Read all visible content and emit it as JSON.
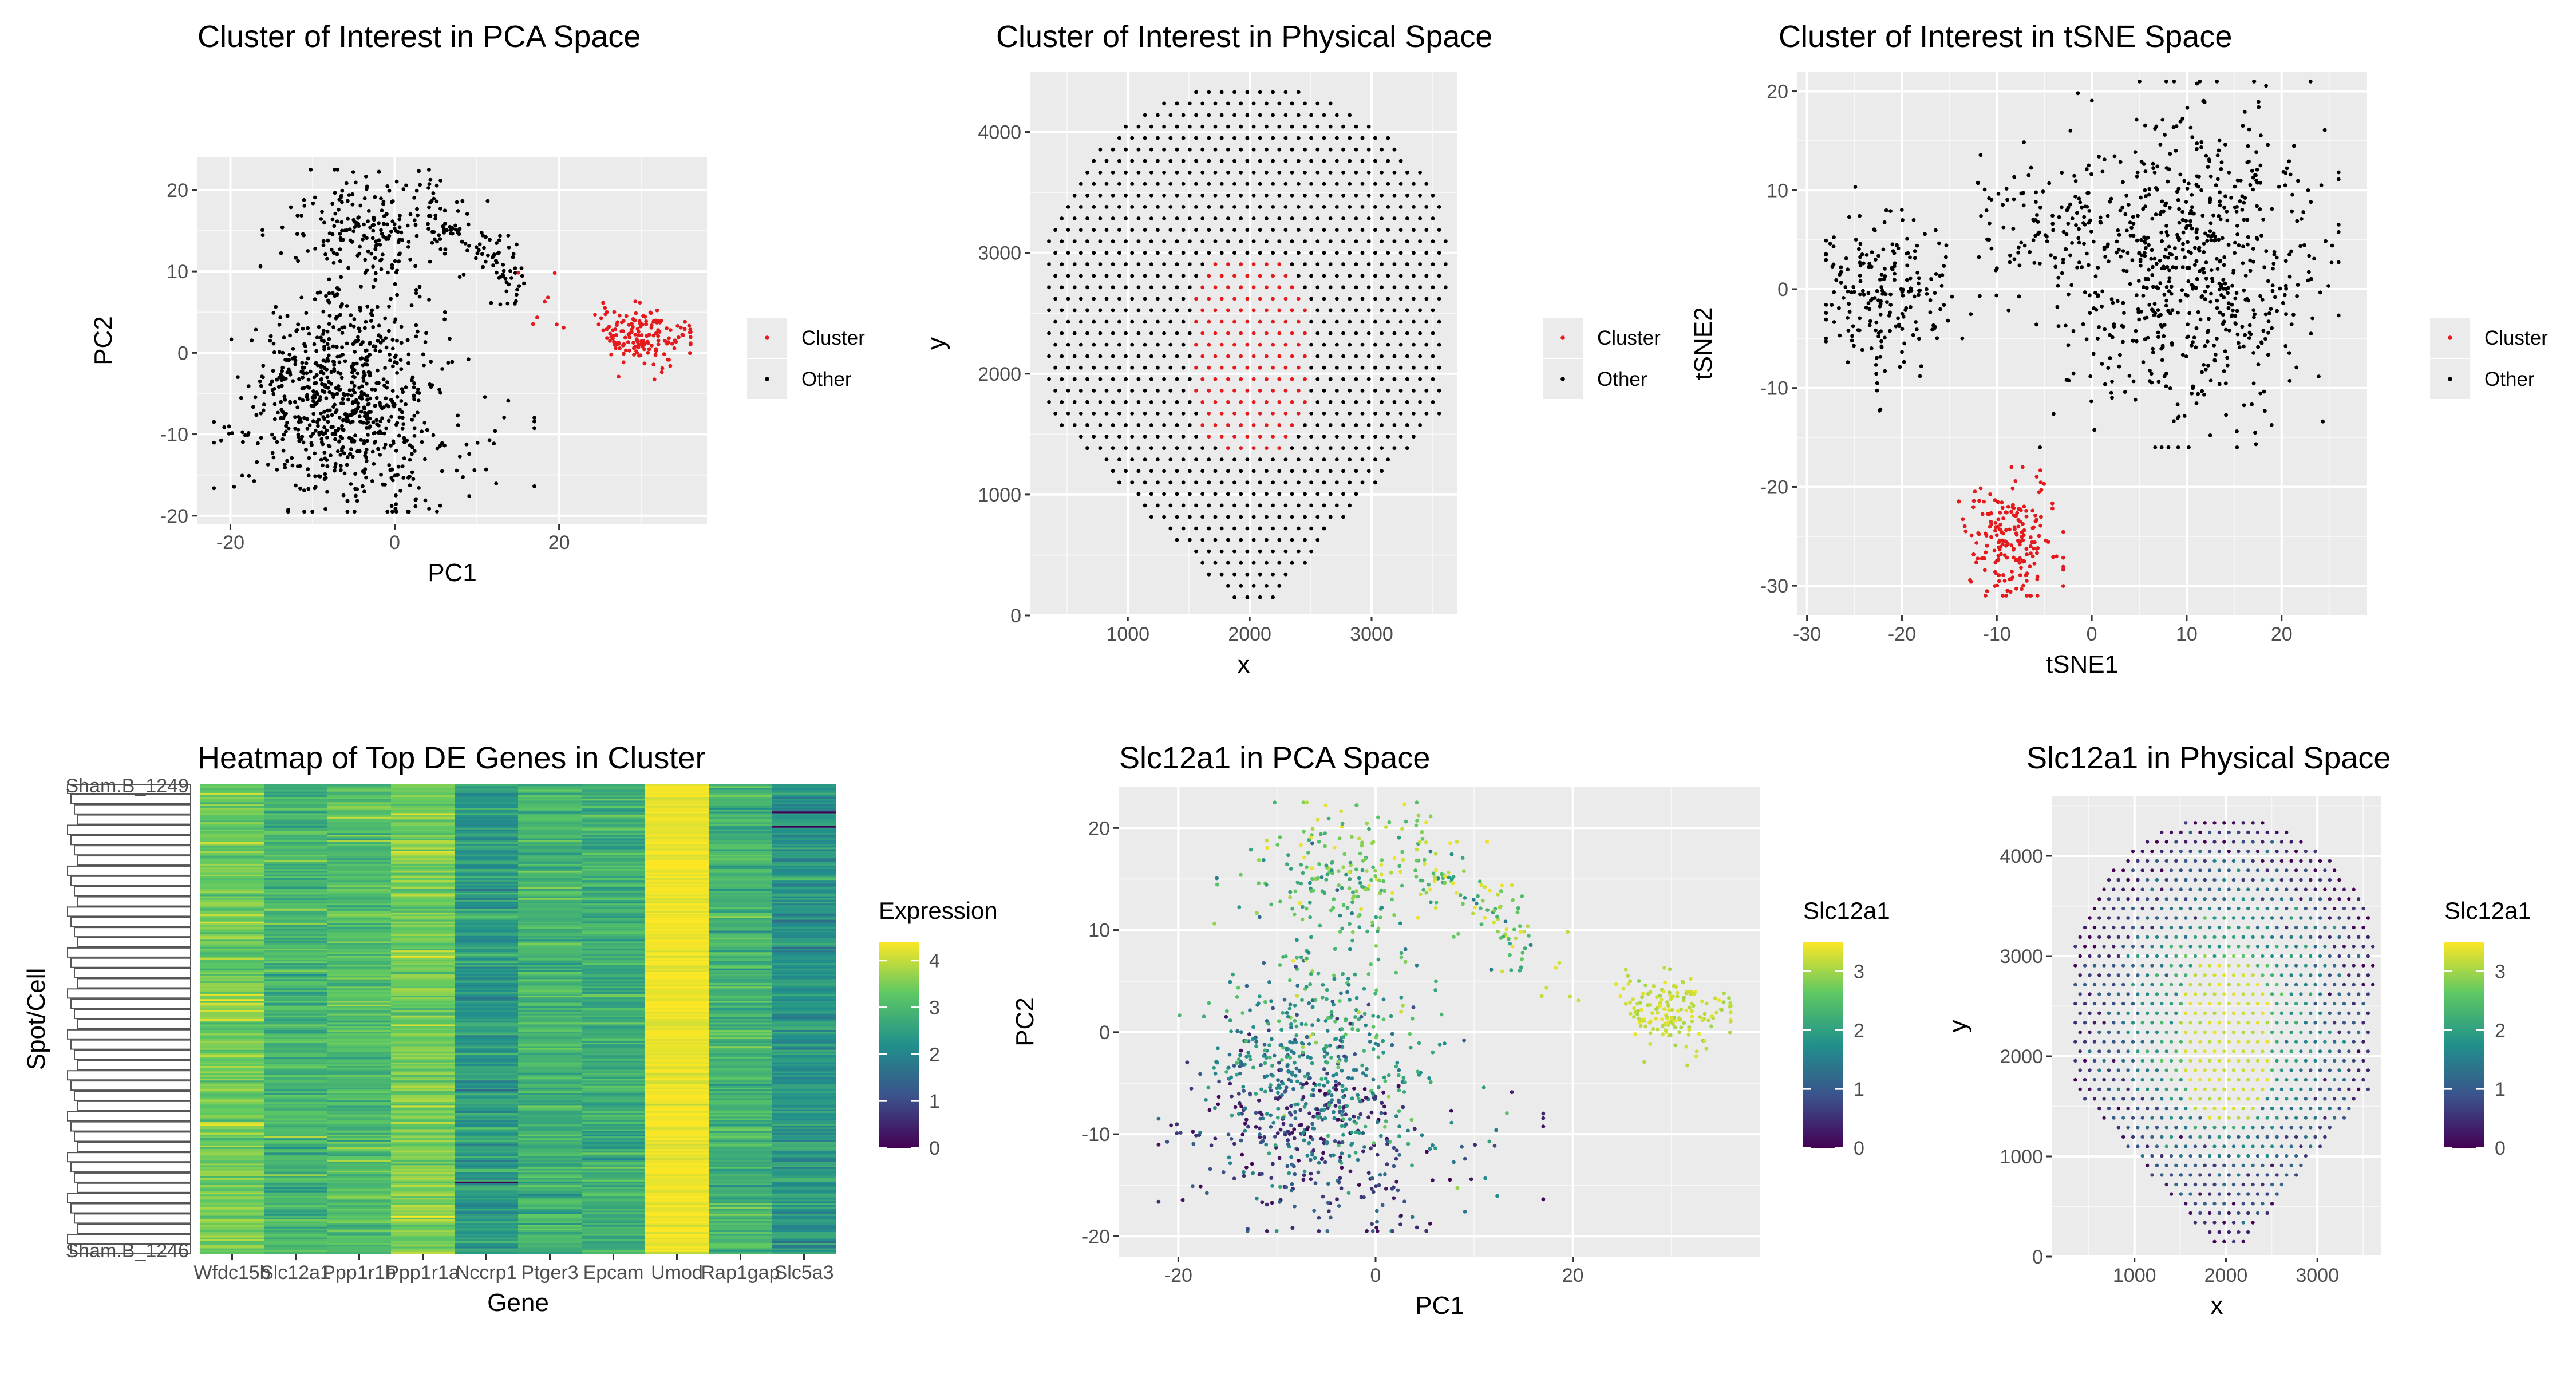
{
  "colors": {
    "panel": "#EBEBEB",
    "grid_major": "#FFFFFF",
    "cluster": "#E41A1C",
    "other": "#000000",
    "viridis": [
      "#440154",
      "#3B528B",
      "#21908C",
      "#5DC863",
      "#FDE725"
    ]
  },
  "chart_data": [
    {
      "id": "pca",
      "type": "scatter",
      "title": "Cluster of Interest in PCA Space",
      "xlabel": "PC1",
      "ylabel": "PC2",
      "xlim": [
        -24,
        38
      ],
      "ylim": [
        -21,
        24
      ],
      "xticks": [
        -20,
        0,
        20
      ],
      "yticks": [
        -20,
        -10,
        0,
        10,
        20
      ],
      "legend": {
        "position": "right",
        "entries": [
          "Cluster",
          "Other"
        ]
      },
      "series": [
        {
          "name": "Cluster",
          "n_points": 160,
          "x_range": [
            18,
            36
          ],
          "y_range": [
            -3,
            7
          ]
        },
        {
          "name": "Other",
          "n_points": 1100,
          "x_range": [
            -22,
            17
          ],
          "y_range": [
            -19,
            22
          ]
        }
      ]
    },
    {
      "id": "phys",
      "type": "scatter",
      "title": "Cluster of Interest in Physical Space",
      "xlabel": "x",
      "ylabel": "y",
      "xlim": [
        200,
        3700
      ],
      "ylim": [
        0,
        4500
      ],
      "xticks": [
        1000,
        2000,
        3000
      ],
      "yticks": [
        0,
        1000,
        2000,
        3000,
        4000
      ],
      "legend": {
        "position": "right",
        "entries": [
          "Cluster",
          "Other"
        ]
      },
      "series": [
        {
          "name": "Cluster",
          "x_range": [
            1500,
            2500
          ],
          "y_range": [
            1300,
            3000
          ]
        },
        {
          "name": "Other",
          "x_range": [
            300,
            3600
          ],
          "y_range": [
            150,
            4400
          ]
        }
      ]
    },
    {
      "id": "tsne",
      "type": "scatter",
      "title": "Cluster of Interest in tSNE Space",
      "xlabel": "tSNE1",
      "ylabel": "tSNE2",
      "xlim": [
        -31,
        29
      ],
      "ylim": [
        -33,
        22
      ],
      "xticks": [
        -30,
        -20,
        -10,
        0,
        10,
        20
      ],
      "yticks": [
        -30,
        -20,
        -10,
        0,
        10,
        20
      ],
      "legend": {
        "position": "right",
        "entries": [
          "Cluster",
          "Other"
        ]
      },
      "series": [
        {
          "name": "Cluster",
          "n_points": 200,
          "x_range": [
            -14,
            -3
          ],
          "y_range": [
            -31,
            -18
          ]
        },
        {
          "name": "Other",
          "n_points": 1100,
          "x_range": [
            -28,
            26
          ],
          "y_range": [
            -16,
            21
          ]
        }
      ]
    },
    {
      "id": "heatmap",
      "type": "heatmap",
      "title": "Heatmap of Top DE Genes in Cluster",
      "xlabel": "Gene",
      "ylabel": "Spot/Cell",
      "categories": [
        "Wfdc15b",
        "Slc12a1",
        "Ppp1r1b",
        "Ppp1r1a",
        "Nccrp1",
        "Ptger3",
        "Epcam",
        "Umod",
        "Rap1gap",
        "Slc5a3"
      ],
      "mean_values": [
        3.4,
        2.9,
        3.1,
        3.5,
        2.4,
        2.9,
        2.8,
        4.3,
        2.9,
        2.3
      ],
      "row_labels_visible": [
        "Sham.B_1249",
        "Sham.B_1246"
      ],
      "legend": {
        "title": "Expression",
        "ticks": [
          0,
          1,
          2,
          3,
          4
        ],
        "range": [
          0,
          4.4
        ]
      }
    },
    {
      "id": "slc_pca",
      "type": "scatter",
      "title": "Slc12a1 in PCA Space",
      "xlabel": "PC1",
      "ylabel": "PC2",
      "xlim": [
        -26,
        39
      ],
      "ylim": [
        -22,
        24
      ],
      "xticks": [
        -20,
        0,
        20
      ],
      "yticks": [
        -20,
        -10,
        0,
        10,
        20
      ],
      "legend": {
        "title": "Slc12a1",
        "ticks": [
          0,
          1,
          2,
          3
        ],
        "range": [
          0,
          3.5
        ]
      }
    },
    {
      "id": "slc_phys",
      "type": "scatter",
      "title": "Slc12a1 in Physical Space",
      "xlabel": "x",
      "ylabel": "y",
      "xlim": [
        100,
        3700
      ],
      "ylim": [
        0,
        4600
      ],
      "xticks": [
        1000,
        2000,
        3000
      ],
      "yticks": [
        0,
        1000,
        2000,
        3000,
        4000
      ],
      "legend": {
        "title": "Slc12a1",
        "ticks": [
          0,
          1,
          2,
          3
        ],
        "range": [
          0,
          3.5
        ]
      }
    }
  ]
}
